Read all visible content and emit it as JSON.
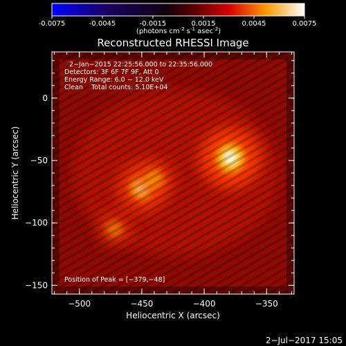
{
  "colorbar": {
    "ticks": [
      "-0.0075",
      "-0.0045",
      "-0.0015",
      "0.0015",
      "0.0045",
      "0.0075"
    ],
    "tick_values": [
      -0.0075,
      -0.0045,
      -0.0015,
      0.0015,
      0.0045,
      0.0075
    ],
    "range": [
      -0.0075,
      0.0075
    ],
    "units_base": "(photons cm",
    "units_exp1": "-2",
    "units_mid1": " s",
    "units_exp2": "-1",
    "units_mid2": " asec",
    "units_exp3": "-2",
    "units_end": ")"
  },
  "chart_data": {
    "type": "heatmap",
    "title": "Reconstructed RHESSI Image",
    "xlabel": "Heliocentric X (arcsec)",
    "ylabel": "Heliocentric Y (arcsec)",
    "xlim": [
      -522,
      -328
    ],
    "ylim": [
      -157,
      37
    ],
    "xticks": [
      -500,
      -450,
      -400,
      -350
    ],
    "yticks": [
      0,
      -50,
      -100,
      -150
    ],
    "xtick_labels": [
      "−500",
      "−450",
      "−400",
      "−350"
    ],
    "ytick_labels": [
      "0",
      "−50",
      "−100",
      "−150"
    ],
    "colormap": [
      "#0000ff",
      "#000000",
      "#ff0000",
      "#ffff00",
      "#ffffff"
    ],
    "sources": [
      {
        "x": -379,
        "y": -48,
        "level": 1.0
      },
      {
        "x": -450,
        "y": -72,
        "level": 0.72
      },
      {
        "x": -440,
        "y": -65,
        "level": 0.5
      },
      {
        "x": -472,
        "y": -105,
        "level": 0.4
      }
    ],
    "annotations": [
      "2−Jan−2015 22:25:56.000 to 22:35:56.000",
      "Detectors: 3F 6F 7F 9F, Att 0",
      "Energy Range: 6.0 − 12.0 keV",
      "Clean    Total counts: 5.10E+04",
      "Position of Peak = [−379,−48]"
    ]
  },
  "footer": {
    "date": "2−Jul−2017 15:05"
  }
}
